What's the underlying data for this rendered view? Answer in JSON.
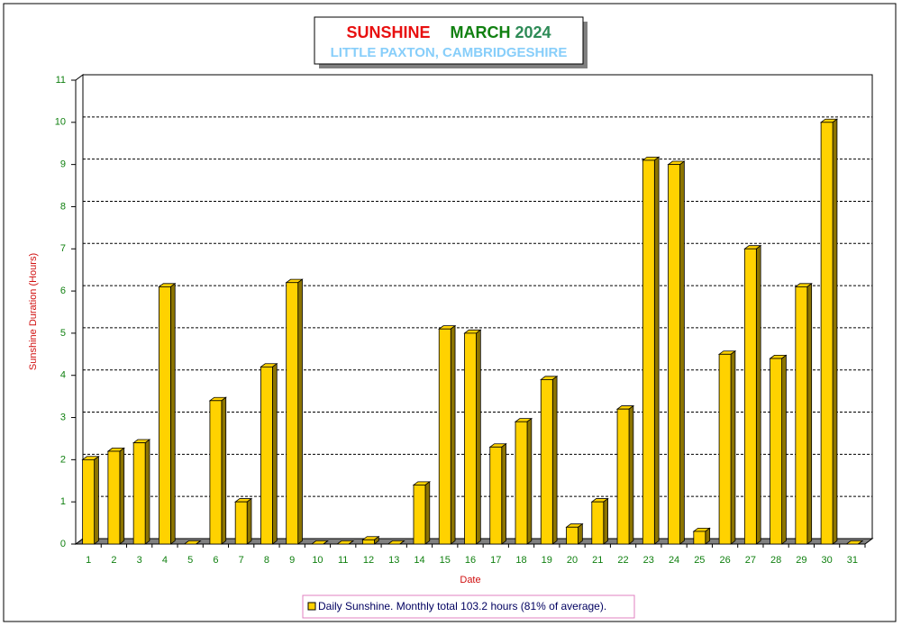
{
  "chart_data": {
    "type": "bar",
    "title_parts": [
      {
        "text": "SUNSHINE",
        "color": "#e81010"
      },
      {
        "text": "MARCH",
        "color": "#108010"
      },
      {
        "text": "2024",
        "color": "#2e8b57"
      }
    ],
    "subtitle": "LITTLE PAXTON, CAMBRIDGESHIRE",
    "x_label": "Date",
    "y_label": "Sunshine Duration (Hours)",
    "categories": [
      "1",
      "2",
      "3",
      "4",
      "5",
      "6",
      "7",
      "8",
      "9",
      "10",
      "11",
      "12",
      "13",
      "14",
      "15",
      "16",
      "17",
      "18",
      "19",
      "20",
      "21",
      "22",
      "23",
      "24",
      "25",
      "26",
      "27",
      "28",
      "29",
      "30",
      "31"
    ],
    "series": [
      {
        "name": "Daily Sunshine. Monthly total 103.2 hours (81% of average).",
        "color": "#ffd200",
        "values": [
          2.0,
          2.2,
          2.4,
          6.1,
          0,
          3.4,
          1.0,
          4.2,
          6.2,
          0,
          0,
          0.1,
          0,
          1.4,
          5.1,
          5.0,
          2.3,
          2.9,
          3.9,
          0.4,
          1.0,
          3.2,
          9.1,
          9.0,
          0.3,
          4.5,
          7.0,
          4.4,
          6.1,
          10.0,
          0
        ]
      }
    ],
    "ylim": [
      0,
      11
    ],
    "yticks": [
      0,
      1,
      2,
      3,
      4,
      5,
      6,
      7,
      8,
      9,
      10,
      11
    ],
    "grid": true
  }
}
